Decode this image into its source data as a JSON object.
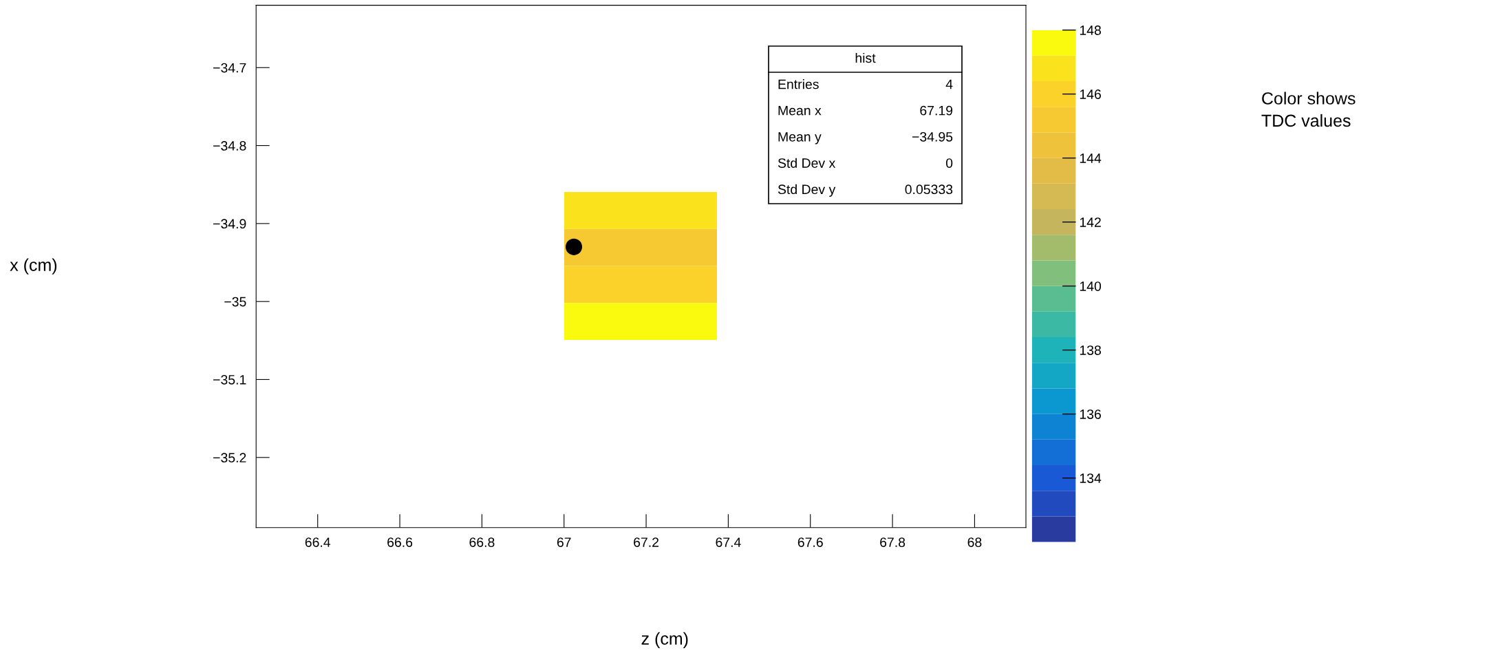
{
  "chart_data": [
    {
      "type": "scatter",
      "xlabel": "z (cm)",
      "ylabel": "x (cm)",
      "series": [
        {
          "marker": "circle",
          "x": [
            67.024
          ],
          "values": [
            -34.93
          ],
          "color": "#000000"
        }
      ],
      "xlim": [
        66.25,
        68.125
      ],
      "xticks": [
        66.4,
        66.6,
        66.8,
        67,
        67.2,
        67.4,
        67.6,
        67.8,
        68
      ],
      "ylim": [
        -35.29,
        -34.62
      ],
      "yticks": [
        -35.2,
        -35.1,
        -35,
        -34.9,
        -34.8,
        -34.7
      ],
      "annotations": [
        "hist",
        "Entries",
        "4",
        "Mean x",
        "67.19",
        "Mean y",
        "−34.95",
        "Std Dev x",
        "0",
        "Std Dev y",
        "0.05333"
      ]
    },
    {
      "type": "heatmap",
      "clabel": "Color shows\nTDC values",
      "categories": [
        null
      ],
      "y_categories": [
        null,
        null,
        null,
        null
      ],
      "cells": [
        [
          146.8
        ],
        [
          145.2
        ],
        [
          146.0
        ],
        [
          147.6
        ]
      ],
      "clim": [
        132,
        148
      ],
      "cticks": [
        134,
        136,
        138,
        140,
        142,
        144,
        146,
        148
      ]
    }
  ]
}
